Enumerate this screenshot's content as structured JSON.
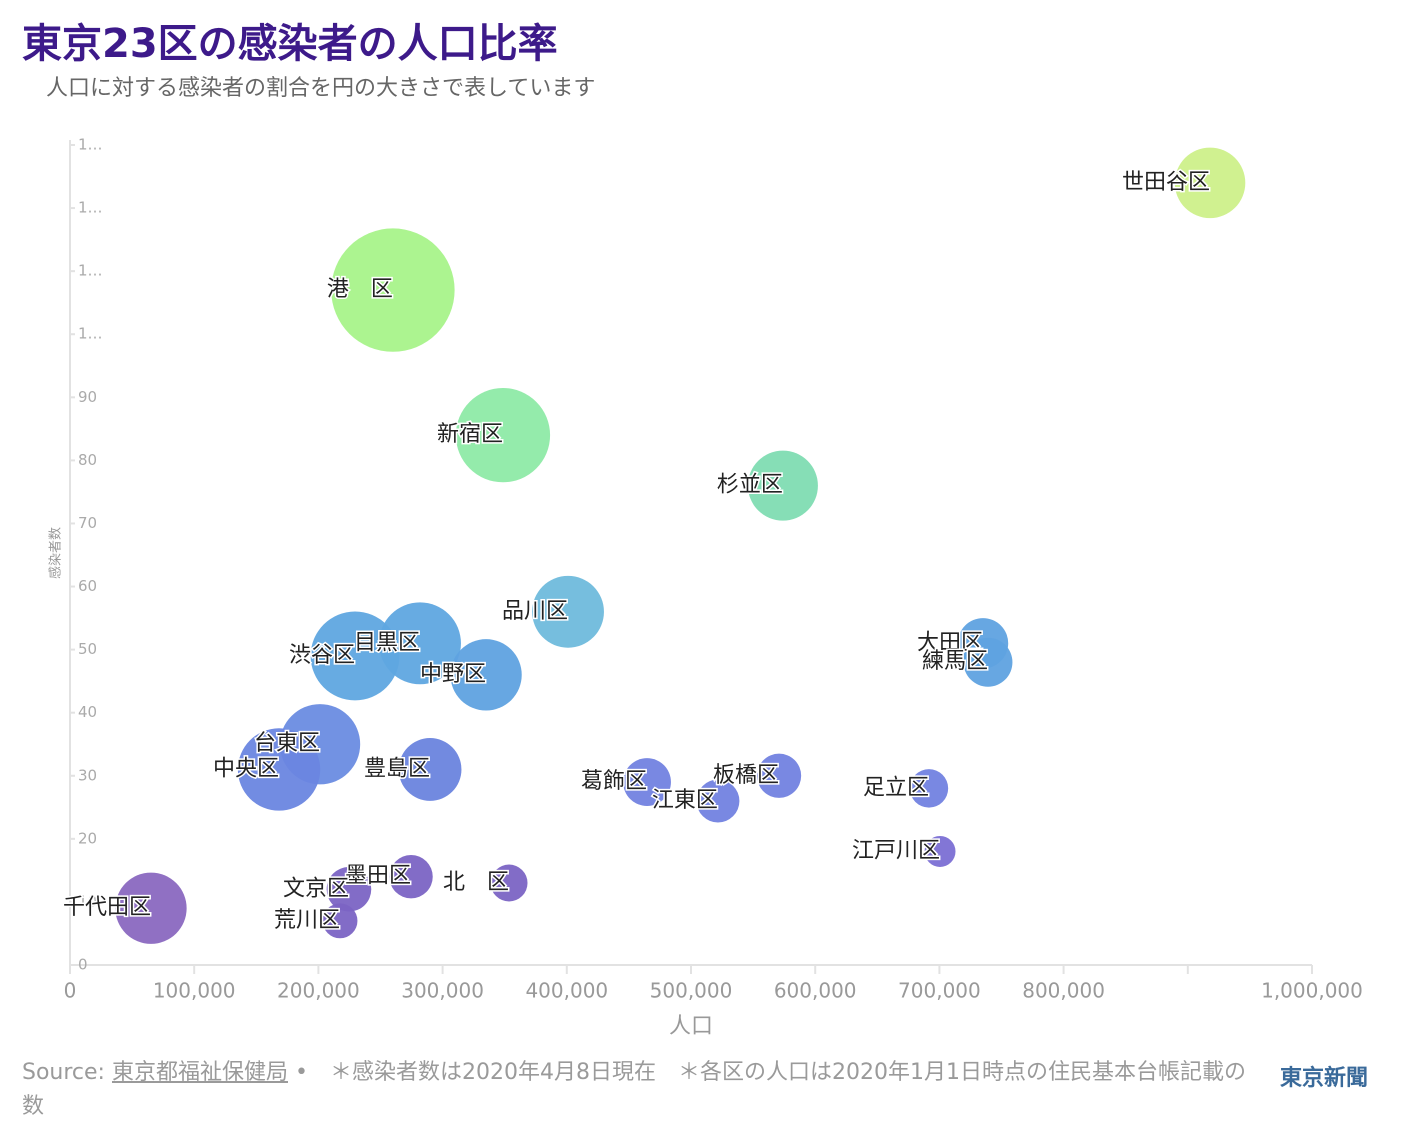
{
  "chart_data": {
    "type": "bubble",
    "title": "東京23区の感染者の人口比率",
    "subtitle": "人口に対する感染者の割合を円の大きさで表しています",
    "x_label": "人口",
    "y_label": "感染者数",
    "labels": [
      "世田谷区",
      "港　区",
      "新宿区",
      "杉並区",
      "品川区",
      "目黒区",
      "渋谷区",
      "中野区",
      "大田区",
      "練馬区",
      "台東区",
      "中央区",
      "豊島区",
      "葛飾区",
      "板橋区",
      "江東区",
      "足立区",
      "江戸川区",
      "墨田区",
      "北　区",
      "文京区",
      "荒川区",
      "千代田区"
    ],
    "x": [
      917900,
      260000,
      348600,
      574000,
      401000,
      281800,
      229500,
      335000,
      735100,
      739100,
      201300,
      168300,
      289900,
      464600,
      570900,
      521700,
      691600,
      700500,
      274600,
      353500,
      224600,
      217400,
      65200
    ],
    "values": [
      124,
      107,
      84,
      76,
      56,
      51,
      49,
      46,
      51,
      48,
      35,
      31,
      31,
      29,
      30,
      26,
      28,
      18,
      14,
      13,
      12,
      7,
      9
    ],
    "sizes": [
      13.5,
      41.3,
      24.1,
      13.3,
      14.0,
      18.2,
      21.4,
      13.8,
      6.9,
      6.5,
      17.5,
      18.4,
      10.7,
      6.2,
      5.3,
      5.0,
      4.0,
      2.6,
      5.1,
      3.7,
      5.4,
      3.3,
      13.8
    ],
    "colors": [
      "#cdf08a",
      "#a8f38a",
      "#8eeaa6",
      "#7fdcb2",
      "#6fbbdc",
      "#5fa6e0",
      "#5fa6e0",
      "#5fa2e0",
      "#5fa2e0",
      "#5fa2e0",
      "#6a8ce2",
      "#6a86e0",
      "#6a84de",
      "#7282e0",
      "#7282e0",
      "#7282e0",
      "#7282e0",
      "#7b6fd4",
      "#7b64c4",
      "#7b64c4",
      "#7b64c4",
      "#7b64c4",
      "#8a68c0"
    ],
    "xlim": [
      0,
      1000000
    ],
    "xticks": [
      0,
      {
        "value": 100000,
        "label": "100,000"
      },
      {
        "value": 200000,
        "label": "200,000"
      },
      {
        "value": 300000,
        "label": "300,000"
      },
      {
        "value": 400000,
        "label": "400,000"
      },
      {
        "value": 500000,
        "label": "500,000"
      },
      {
        "value": 600000,
        "label": "600,000"
      },
      {
        "value": 700000,
        "label": "700,000"
      },
      {
        "value": 800000,
        "label": "800,000"
      },
      {
        "value": 900000,
        "label": null
      },
      {
        "value": 1000000,
        "label": "1,000,000"
      }
    ],
    "ylim": [
      0,
      130
    ],
    "yticks": [
      0,
      10,
      20,
      30,
      40,
      50,
      60,
      70,
      80,
      90,
      {
        "value": 100,
        "label": "1…"
      },
      {
        "value": 110,
        "label": "1…"
      },
      {
        "value": 120,
        "label": "1…"
      },
      {
        "value": 130,
        "label": "1…"
      }
    ]
  },
  "footer": {
    "source_label": "Source:",
    "source": "東京都福祉保健局",
    "note": "•　＊感染者数は2020年4月8日現在　＊各区の人口は2020年1月1日時点の住民基本台帳記載の数",
    "logo": "東京新聞"
  }
}
